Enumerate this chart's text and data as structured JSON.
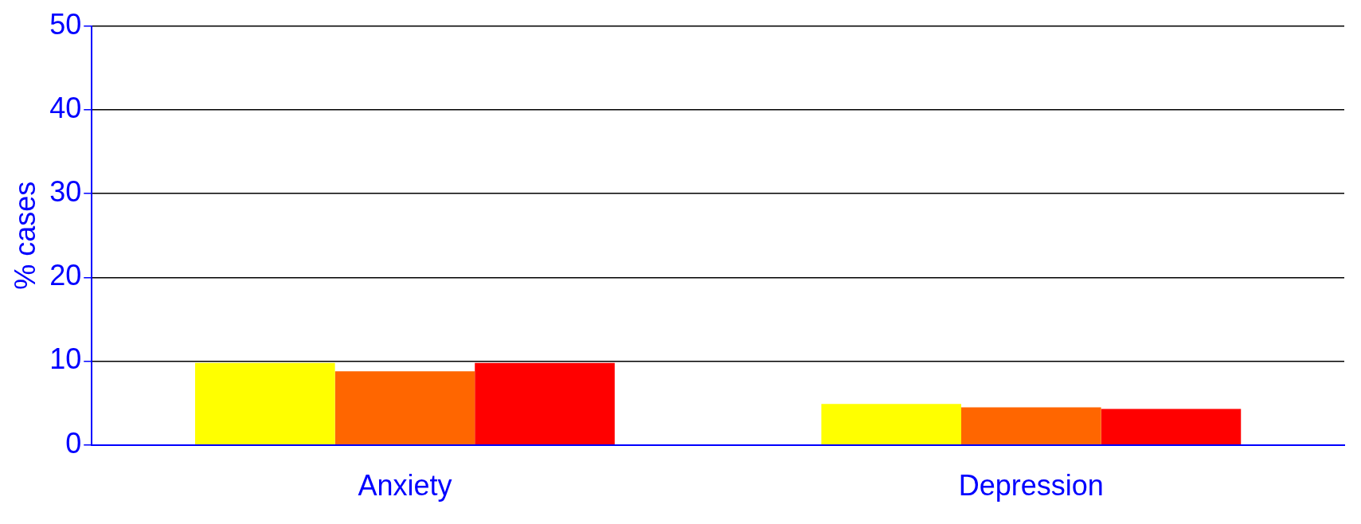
{
  "chart_data": {
    "type": "bar",
    "ylabel": "% cases",
    "categories": [
      "Anxiety",
      "Depression"
    ],
    "series": [
      {
        "color": "#ffff00",
        "values": [
          9.8,
          4.9
        ]
      },
      {
        "color": "#ff6600",
        "values": [
          8.8,
          4.5
        ]
      },
      {
        "color": "#ff0000",
        "values": [
          9.8,
          4.3
        ]
      }
    ],
    "ylim": [
      0,
      50
    ],
    "yticks": [
      0,
      10,
      20,
      30,
      40,
      50
    ],
    "grid": "y",
    "legend": false
  }
}
